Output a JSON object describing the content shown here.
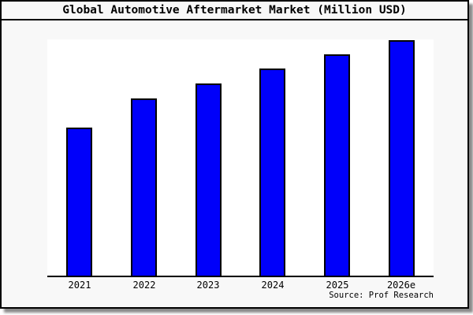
{
  "colors": {
    "panel_background": "#f8f8f8",
    "plot_background": "#ffffff",
    "frame_border": "#000000",
    "bar_fill": "#0000fa",
    "bar_border": "#000000",
    "axis_line": "#000000",
    "shadow": "#8a8a8a"
  },
  "chart_data": {
    "type": "bar",
    "title": "Global Automotive Aftermarket Market (Million USD)",
    "categories": [
      "2021",
      "2022",
      "2023",
      "2024",
      "2025",
      "2026e"
    ],
    "values_pct_of_plot_height": [
      62.7,
      75.0,
      81.3,
      87.7,
      93.7,
      99.7
    ],
    "xlabel": "",
    "ylabel": "",
    "y_axis_ticks": "none (axis unlabeled, no gridlines)",
    "grid": false,
    "legend": "none",
    "bar_color": "#0000fa",
    "source": "Source: Prof Research"
  }
}
